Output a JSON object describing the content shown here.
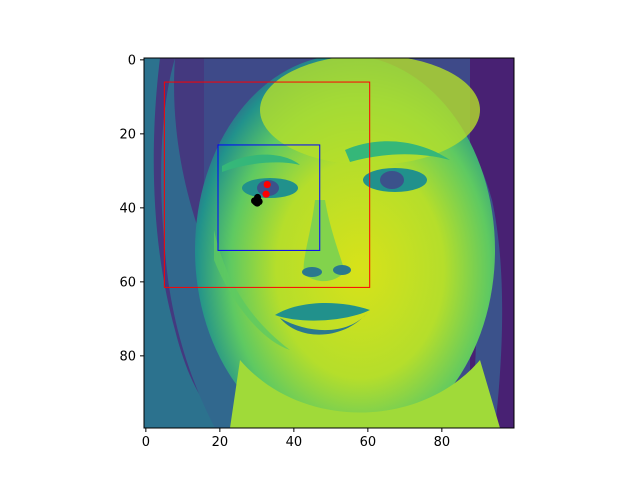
{
  "chart_data": {
    "type": "heatmap",
    "title": "",
    "xlabel": "",
    "ylabel": "",
    "xlim": [
      -0.5,
      99.5
    ],
    "ylim": [
      99.5,
      -0.5
    ],
    "x_ticks": [
      0,
      20,
      40,
      60,
      80
    ],
    "y_ticks": [
      0,
      20,
      40,
      60,
      80
    ],
    "colormap": "viridis",
    "image_description": "grayscale face crop rendered with viridis colormap",
    "grid": false,
    "overlays": {
      "rectangles": [
        {
          "color": "#ff0000",
          "x0": 5,
          "y0": 6,
          "x1": 60.5,
          "y1": 61.5
        },
        {
          "color": "#0000ff",
          "x0": 19.5,
          "y0": 23,
          "x1": 47,
          "y1": 51.5
        }
      ],
      "points": [
        {
          "color": "#ff0000",
          "x": 32.5,
          "y": 36.3
        },
        {
          "color": "#ff0000",
          "x": 32.8,
          "y": 33.7
        },
        {
          "color": "#000000",
          "x": 30.2,
          "y": 37.2
        },
        {
          "color": "#000000",
          "x": 29.7,
          "y": 38.4
        },
        {
          "color": "#000000",
          "x": 30.6,
          "y": 38.3
        },
        {
          "color": "#000000",
          "x": 29.4,
          "y": 38.1
        },
        {
          "color": "#000000",
          "x": 30.1,
          "y": 38.7
        }
      ]
    }
  }
}
